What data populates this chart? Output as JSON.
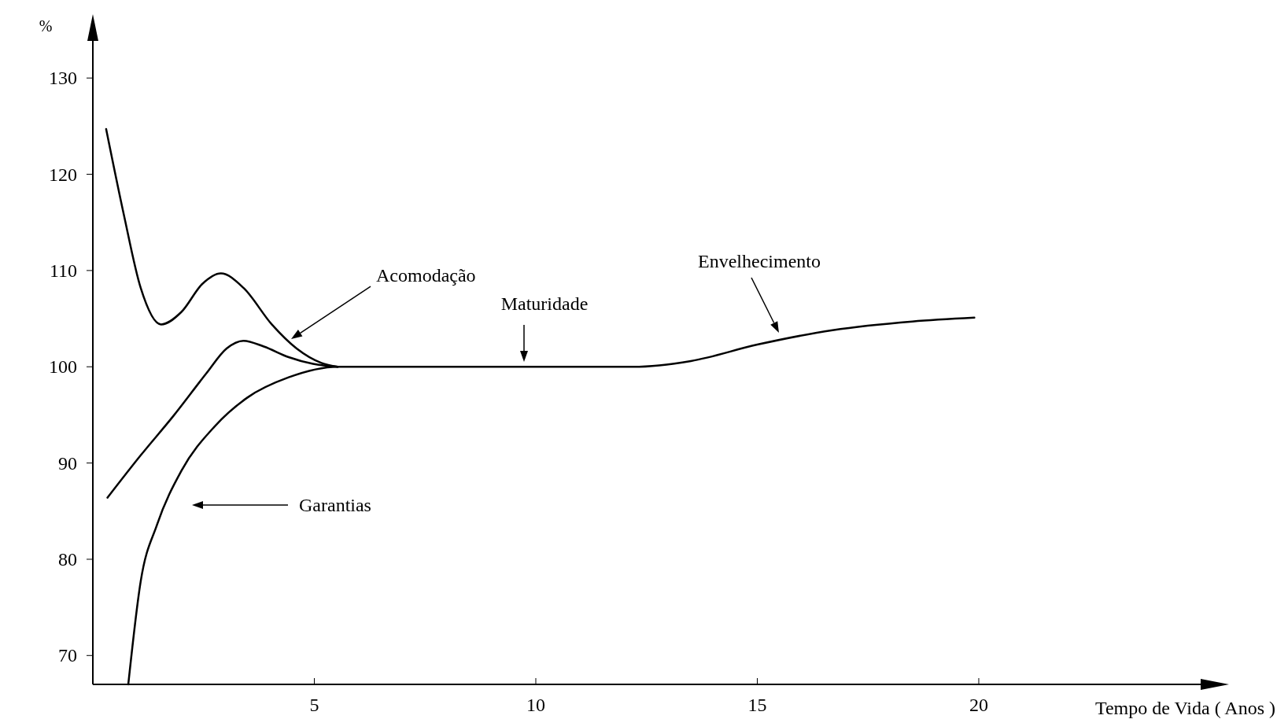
{
  "chart_data": {
    "type": "line",
    "ylabel": "%",
    "xlabel": "Tempo de Vida ( Anos )",
    "xlim": [
      0,
      25.4
    ],
    "ylim": [
      67,
      135
    ],
    "xticks": [
      5,
      10,
      15,
      20
    ],
    "yticks": [
      70,
      80,
      90,
      100,
      110,
      120,
      130
    ],
    "grid": false,
    "line_style": "solid",
    "series": [
      {
        "color": "#000000",
        "x": [
          0.3,
          0.7,
          1.08,
          1.54,
          2.0,
          2.47,
          2.89,
          3.4,
          4.04,
          4.6,
          5.16,
          5.53
        ],
        "values": [
          124.7,
          115.8,
          108.2,
          104.4,
          105.7,
          108.6,
          109.7,
          108.2,
          104.4,
          101.9,
          100.4,
          100
        ]
      },
      {
        "color": "#000000",
        "x": [
          0.33,
          1.08,
          1.82,
          2.56,
          3.02,
          3.4,
          3.86,
          4.42,
          4.97,
          5.53
        ],
        "values": [
          86.4,
          90.8,
          94.9,
          99.3,
          101.9,
          102.7,
          102.1,
          101,
          100.3,
          100
        ]
      },
      {
        "color": "#000000",
        "x": [
          0.8,
          1.08,
          1.45,
          2.0,
          2.75,
          3.49,
          4.42,
          5.53,
          7.38,
          10,
          12.2,
          13.5,
          15,
          16.7,
          18.5,
          19.9
        ],
        "values": [
          67,
          77.7,
          83.6,
          89.2,
          93.8,
          96.8,
          98.9,
          100,
          100,
          100,
          100,
          100.6,
          102.3,
          103.8,
          104.7,
          105.1
        ]
      }
    ],
    "annotations": [
      "Acomodação",
      "Maturidade",
      "Envelhecimento",
      "Garantias"
    ]
  }
}
